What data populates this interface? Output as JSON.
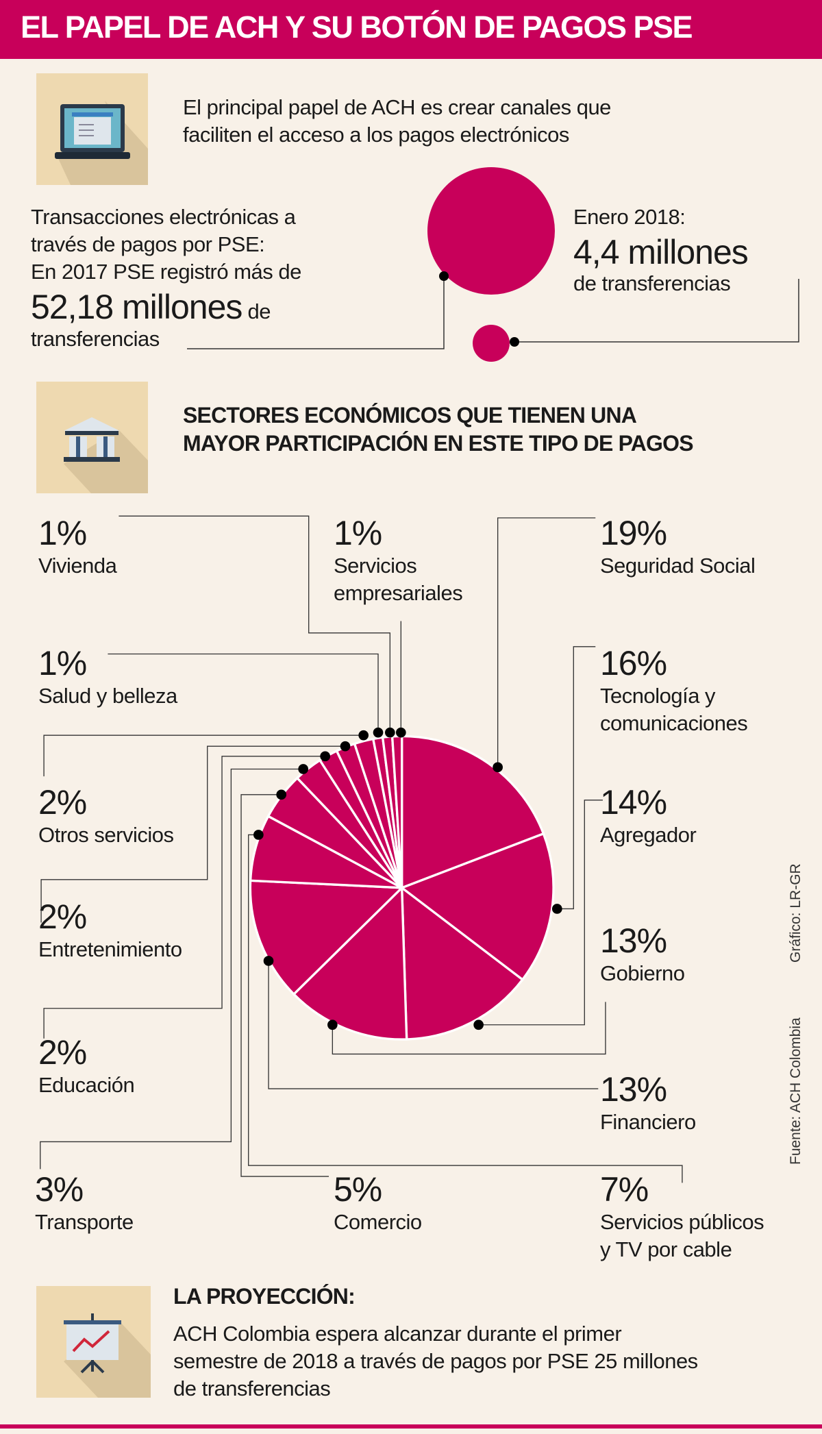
{
  "title": "EL PAPEL DE ACH Y SU BOTÓN DE PAGOS PSE",
  "intro": {
    "icon": "laptop-icon",
    "lines": [
      "El principal papel de ACH es crear canales que",
      "faciliten el acceso a los pagos electrónicos"
    ]
  },
  "stats_2017": {
    "lines": [
      "Transacciones electrónicas a",
      "través de pagos por PSE:",
      "En 2017 PSE registró más de"
    ],
    "value": "52,18 millones",
    "value_suffix": " de",
    "last_line": "transferencias"
  },
  "stats_2018": {
    "label": "Enero 2018:",
    "value": "4,4 millones",
    "suffix": "de transferencias"
  },
  "sectors": {
    "icon": "bank-icon",
    "heading": [
      "SECTORES ECONÓMICOS QUE TIENEN UNA",
      "MAYOR PARTICIPACIÓN EN ESTE TIPO DE PAGOS"
    ]
  },
  "chart_data": {
    "type": "pie",
    "color": "#c8005a",
    "slices": [
      {
        "pct": "19%",
        "value": 19,
        "label": [
          "Seguridad Social"
        ]
      },
      {
        "pct": "16%",
        "value": 16,
        "label": [
          "Tecnología y",
          "comunicaciones"
        ]
      },
      {
        "pct": "14%",
        "value": 14,
        "label": [
          "Agregador"
        ]
      },
      {
        "pct": "13%",
        "value": 13,
        "label": [
          "Gobierno"
        ]
      },
      {
        "pct": "13%",
        "value": 13,
        "label": [
          "Financiero"
        ]
      },
      {
        "pct": "7%",
        "value": 7,
        "label": [
          "Servicios públicos",
          "y TV por cable"
        ]
      },
      {
        "pct": "5%",
        "value": 5,
        "label": [
          "Comercio"
        ]
      },
      {
        "pct": "3%",
        "value": 3,
        "label": [
          "Transporte"
        ]
      },
      {
        "pct": "2%",
        "value": 2,
        "label": [
          "Educación"
        ]
      },
      {
        "pct": "2%",
        "value": 2,
        "label": [
          "Entretenimiento"
        ]
      },
      {
        "pct": "2%",
        "value": 2,
        "label": [
          "Otros servicios"
        ]
      },
      {
        "pct": "1%",
        "value": 1,
        "label": [
          "Salud y belleza"
        ]
      },
      {
        "pct": "1%",
        "value": 1,
        "label": [
          "Servicios",
          "empresariales"
        ]
      },
      {
        "pct": "1%",
        "value": 1,
        "label": [
          "Vivienda"
        ]
      }
    ]
  },
  "credits": {
    "graphic": "Gráfico: LR-GR",
    "source": "Fuente: ACH Colombia"
  },
  "projection": {
    "icon": "presentation-chart-icon",
    "heading": "LA PROYECCIÓN:",
    "lines": [
      "ACH Colombia espera alcanzar durante el primer",
      "semestre de 2018 a través de pagos por PSE 25 millones",
      "de transferencias"
    ]
  },
  "colors": {
    "accent": "#c8005a",
    "background": "#f8f1e8",
    "icon_box": "#eed9b0"
  }
}
